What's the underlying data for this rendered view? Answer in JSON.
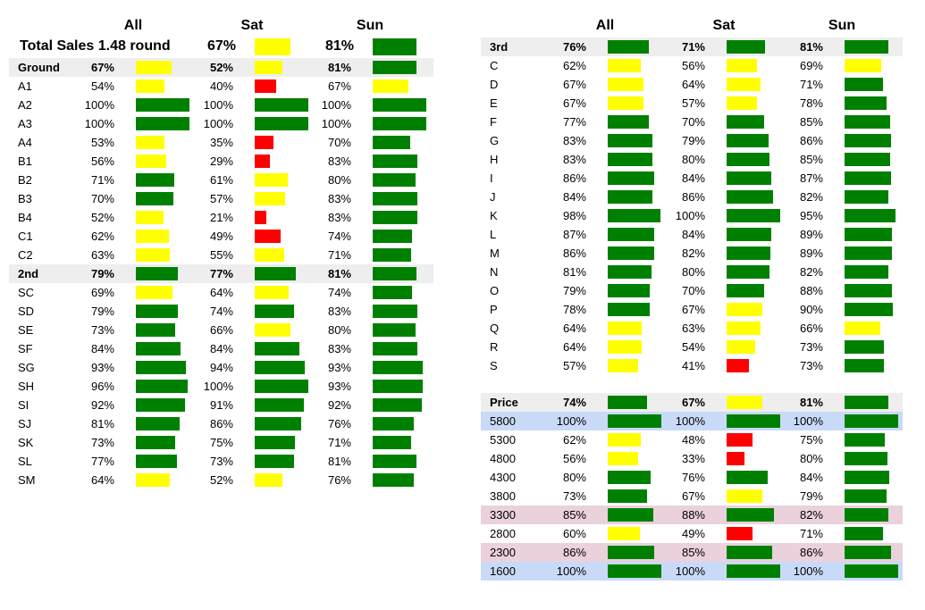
{
  "colors": {
    "green": "#008000",
    "yellow": "#ffff00",
    "red": "#ff0000"
  },
  "headers": {
    "all": "All",
    "sat": "Sat",
    "sun": "Sun"
  },
  "total": {
    "label": "Total Sales 1.48 round",
    "sat": "67%",
    "sun": "81%",
    "sat_pct": 67,
    "sun_pct": 81
  },
  "left_groups": [
    {
      "rows": [
        {
          "label": "Ground",
          "all": "67%",
          "sat": "52%",
          "sun": "81%",
          "a": 67,
          "s": 52,
          "u": 81,
          "bold": true,
          "hl": "gray"
        },
        {
          "label": "A1",
          "all": "54%",
          "sat": "40%",
          "sun": "67%",
          "a": 54,
          "s": 40,
          "u": 67
        },
        {
          "label": "A2",
          "all": "100%",
          "sat": "100%",
          "sun": "100%",
          "a": 100,
          "s": 100,
          "u": 100
        },
        {
          "label": "A3",
          "all": "100%",
          "sat": "100%",
          "sun": "100%",
          "a": 100,
          "s": 100,
          "u": 100
        },
        {
          "label": "A4",
          "all": "53%",
          "sat": "35%",
          "sun": "70%",
          "a": 53,
          "s": 35,
          "u": 70
        },
        {
          "label": "B1",
          "all": "56%",
          "sat": "29%",
          "sun": "83%",
          "a": 56,
          "s": 29,
          "u": 83
        },
        {
          "label": "B2",
          "all": "71%",
          "sat": "61%",
          "sun": "80%",
          "a": 71,
          "s": 61,
          "u": 80
        },
        {
          "label": "B3",
          "all": "70%",
          "sat": "57%",
          "sun": "83%",
          "a": 70,
          "s": 57,
          "u": 83
        },
        {
          "label": "B4",
          "all": "52%",
          "sat": "21%",
          "sun": "83%",
          "a": 52,
          "s": 21,
          "u": 83
        },
        {
          "label": "C1",
          "all": "62%",
          "sat": "49%",
          "sun": "74%",
          "a": 62,
          "s": 49,
          "u": 74
        },
        {
          "label": "C2",
          "all": "63%",
          "sat": "55%",
          "sun": "71%",
          "a": 63,
          "s": 55,
          "u": 71
        },
        {
          "label": "2nd",
          "all": "79%",
          "sat": "77%",
          "sun": "81%",
          "a": 79,
          "s": 77,
          "u": 81,
          "bold": true,
          "hl": "gray"
        },
        {
          "label": "SC",
          "all": "69%",
          "sat": "64%",
          "sun": "74%",
          "a": 69,
          "s": 64,
          "u": 74
        },
        {
          "label": "SD",
          "all": "79%",
          "sat": "74%",
          "sun": "83%",
          "a": 79,
          "s": 74,
          "u": 83
        },
        {
          "label": "SE",
          "all": "73%",
          "sat": "66%",
          "sun": "80%",
          "a": 73,
          "s": 66,
          "u": 80
        },
        {
          "label": "SF",
          "all": "84%",
          "sat": "84%",
          "sun": "83%",
          "a": 84,
          "s": 84,
          "u": 83
        },
        {
          "label": "SG",
          "all": "93%",
          "sat": "94%",
          "sun": "93%",
          "a": 93,
          "s": 94,
          "u": 93
        },
        {
          "label": "SH",
          "all": "96%",
          "sat": "100%",
          "sun": "93%",
          "a": 96,
          "s": 100,
          "u": 93
        },
        {
          "label": "SI",
          "all": "92%",
          "sat": "91%",
          "sun": "92%",
          "a": 92,
          "s": 91,
          "u": 92
        },
        {
          "label": "SJ",
          "all": "81%",
          "sat": "86%",
          "sun": "76%",
          "a": 81,
          "s": 86,
          "u": 76
        },
        {
          "label": "SK",
          "all": "73%",
          "sat": "75%",
          "sun": "71%",
          "a": 73,
          "s": 75,
          "u": 71
        },
        {
          "label": "SL",
          "all": "77%",
          "sat": "73%",
          "sun": "81%",
          "a": 77,
          "s": 73,
          "u": 81
        },
        {
          "label": "SM",
          "all": "64%",
          "sat": "52%",
          "sun": "76%",
          "a": 64,
          "s": 52,
          "u": 76
        }
      ]
    }
  ],
  "right_groups": [
    {
      "rows": [
        {
          "label": "3rd",
          "all": "76%",
          "sat": "71%",
          "sun": "81%",
          "a": 76,
          "s": 71,
          "u": 81,
          "bold": true,
          "hl": "gray"
        },
        {
          "label": "C",
          "all": "62%",
          "sat": "56%",
          "sun": "69%",
          "a": 62,
          "s": 56,
          "u": 69
        },
        {
          "label": "D",
          "all": "67%",
          "sat": "64%",
          "sun": "71%",
          "a": 67,
          "s": 64,
          "u": 71
        },
        {
          "label": "E",
          "all": "67%",
          "sat": "57%",
          "sun": "78%",
          "a": 67,
          "s": 57,
          "u": 78
        },
        {
          "label": "F",
          "all": "77%",
          "sat": "70%",
          "sun": "85%",
          "a": 77,
          "s": 70,
          "u": 85
        },
        {
          "label": "G",
          "all": "83%",
          "sat": "79%",
          "sun": "86%",
          "a": 83,
          "s": 79,
          "u": 86
        },
        {
          "label": "H",
          "all": "83%",
          "sat": "80%",
          "sun": "85%",
          "a": 83,
          "s": 80,
          "u": 85
        },
        {
          "label": "I",
          "all": "86%",
          "sat": "84%",
          "sun": "87%",
          "a": 86,
          "s": 84,
          "u": 87
        },
        {
          "label": "J",
          "all": "84%",
          "sat": "86%",
          "sun": "82%",
          "a": 84,
          "s": 86,
          "u": 82
        },
        {
          "label": "K",
          "all": "98%",
          "sat": "100%",
          "sun": "95%",
          "a": 98,
          "s": 100,
          "u": 95
        },
        {
          "label": "L",
          "all": "87%",
          "sat": "84%",
          "sun": "89%",
          "a": 87,
          "s": 84,
          "u": 89
        },
        {
          "label": "M",
          "all": "86%",
          "sat": "82%",
          "sun": "89%",
          "a": 86,
          "s": 82,
          "u": 89
        },
        {
          "label": "N",
          "all": "81%",
          "sat": "80%",
          "sun": "82%",
          "a": 81,
          "s": 80,
          "u": 82
        },
        {
          "label": "O",
          "all": "79%",
          "sat": "70%",
          "sun": "88%",
          "a": 79,
          "s": 70,
          "u": 88
        },
        {
          "label": "P",
          "all": "78%",
          "sat": "67%",
          "sun": "90%",
          "a": 78,
          "s": 67,
          "u": 90
        },
        {
          "label": "Q",
          "all": "64%",
          "sat": "63%",
          "sun": "66%",
          "a": 64,
          "s": 63,
          "u": 66
        },
        {
          "label": "R",
          "all": "64%",
          "sat": "54%",
          "sun": "73%",
          "a": 64,
          "s": 54,
          "u": 73
        },
        {
          "label": "S",
          "all": "57%",
          "sat": "41%",
          "sun": "73%",
          "a": 57,
          "s": 41,
          "u": 73
        }
      ]
    },
    {
      "rows": [
        {
          "label": "Price",
          "all": "74%",
          "sat": "67%",
          "sun": "81%",
          "a": 74,
          "s": 67,
          "u": 81,
          "bold": true,
          "hl": "gray"
        },
        {
          "label": "5800",
          "all": "100%",
          "sat": "100%",
          "sun": "100%",
          "a": 100,
          "s": 100,
          "u": 100,
          "hl": "blue"
        },
        {
          "label": "5300",
          "all": "62%",
          "sat": "48%",
          "sun": "75%",
          "a": 62,
          "s": 48,
          "u": 75
        },
        {
          "label": "4800",
          "all": "56%",
          "sat": "33%",
          "sun": "80%",
          "a": 56,
          "s": 33,
          "u": 80
        },
        {
          "label": "4300",
          "all": "80%",
          "sat": "76%",
          "sun": "84%",
          "a": 80,
          "s": 76,
          "u": 84
        },
        {
          "label": "3800",
          "all": "73%",
          "sat": "67%",
          "sun": "79%",
          "a": 73,
          "s": 67,
          "u": 79
        },
        {
          "label": "3300",
          "all": "85%",
          "sat": "88%",
          "sun": "82%",
          "a": 85,
          "s": 88,
          "u": 82,
          "hl": "pink"
        },
        {
          "label": "2800",
          "all": "60%",
          "sat": "49%",
          "sun": "71%",
          "a": 60,
          "s": 49,
          "u": 71
        },
        {
          "label": "2300",
          "all": "86%",
          "sat": "85%",
          "sun": "86%",
          "a": 86,
          "s": 85,
          "u": 86,
          "hl": "pink"
        },
        {
          "label": "1600",
          "all": "100%",
          "sat": "100%",
          "sun": "100%",
          "a": 100,
          "s": 100,
          "u": 100,
          "hl": "blue"
        }
      ]
    }
  ]
}
